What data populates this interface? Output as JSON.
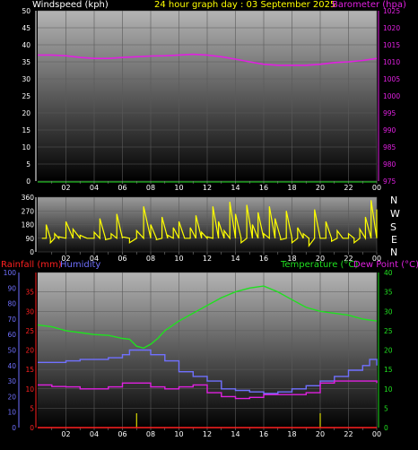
{
  "header": {
    "left": "Windspeed (kph)",
    "center": "24 hour graph day : 03 September 2025",
    "right": "Barometer (hpa)"
  },
  "lower_header": {
    "rainfall": "Rainfall (mm)",
    "humidity": "Humidity",
    "temperature": "Temperature (°C)",
    "dewpoint": "Dew Point (°C)"
  },
  "compass": [
    "N",
    "W",
    "S",
    "E",
    "N"
  ],
  "colors": {
    "wind_axis": "#ffffff",
    "baro": "#e020e0",
    "dir": "#ffff00",
    "temp": "#20e020",
    "dew": "#e020e0",
    "hum": "#7070ff",
    "rain": "#ff2020",
    "title": "#ffff00",
    "tick_text": "#ffff00"
  },
  "chart_data": [
    {
      "type": "line",
      "title": "24 hour graph day : 03 September 2025",
      "x_ticks": [
        "02",
        "04",
        "06",
        "08",
        "10",
        "12",
        "14",
        "16",
        "18",
        "20",
        "22",
        "00"
      ],
      "x_range": [
        0,
        24
      ],
      "y_left": {
        "label": "Windspeed (kph)",
        "ticks": [
          0,
          5,
          10,
          15,
          20,
          25,
          30,
          35,
          40,
          45,
          50
        ],
        "range": [
          0,
          50
        ]
      },
      "y_right": {
        "label": "Barometer (hpa)",
        "ticks": [
          975,
          980,
          985,
          990,
          995,
          1000,
          1005,
          1010,
          1015,
          1020,
          1025
        ],
        "range": [
          975,
          1025
        ]
      },
      "series": [
        {
          "name": "Barometer (hpa)",
          "axis": "right",
          "x": [
            0,
            1,
            2,
            3,
            4,
            5,
            6,
            7,
            8,
            9,
            10,
            11,
            12,
            13,
            14,
            15,
            16,
            17,
            18,
            19,
            20,
            21,
            22,
            23,
            24
          ],
          "y": [
            1012,
            1012,
            1011.8,
            1011.3,
            1011,
            1011,
            1011.3,
            1011.5,
            1011.7,
            1011.8,
            1012,
            1012.2,
            1012,
            1011.5,
            1010.8,
            1010,
            1009.3,
            1009,
            1009,
            1009,
            1009.3,
            1009.8,
            1010,
            1010.4,
            1011
          ]
        }
      ]
    },
    {
      "type": "line",
      "x_ticks": [
        "02",
        "04",
        "06",
        "08",
        "10",
        "12",
        "14",
        "16",
        "18",
        "20",
        "22",
        "00"
      ],
      "x_range": [
        0,
        24
      ],
      "y_left": {
        "ticks": [
          0,
          90,
          180,
          270,
          360
        ],
        "range": [
          0,
          360
        ]
      },
      "y_right_labels": [
        "N",
        "W",
        "S",
        "E",
        "N"
      ],
      "series": [
        {
          "name": "",
          "axis": "left",
          "x": [
            0.3,
            0.6,
            0.9,
            1.2,
            1.5,
            2,
            2.5,
            3,
            3.5,
            4,
            4.4,
            4.8,
            5.2,
            5.6,
            6,
            6.5,
            7,
            7.5,
            8,
            8.4,
            8.8,
            9.2,
            9.6,
            10,
            10.4,
            10.8,
            11.2,
            11.6,
            12,
            12.4,
            12.8,
            13.2,
            13.6,
            14,
            14.4,
            14.8,
            15.2,
            15.6,
            16,
            16.4,
            16.8,
            17.2,
            17.6,
            18,
            18.4,
            18.8,
            19.2,
            19.6,
            20,
            20.4,
            20.8,
            21.2,
            21.6,
            22,
            22.4,
            22.8,
            23.2,
            23.6,
            24
          ],
          "y": [
            90,
            180,
            60,
            120,
            100,
            200,
            150,
            110,
            90,
            130,
            220,
            80,
            120,
            250,
            100,
            60,
            140,
            300,
            180,
            80,
            230,
            110,
            160,
            200,
            90,
            160,
            240,
            130,
            100,
            300,
            200,
            140,
            330,
            250,
            60,
            310,
            180,
            260,
            120,
            300,
            220,
            80,
            270,
            60,
            160,
            120,
            40,
            280,
            90,
            200,
            70,
            140,
            90,
            120,
            60,
            150,
            230,
            340,
            280
          ]
        }
      ]
    },
    {
      "type": "line",
      "x_ticks": [
        "02",
        "04",
        "06",
        "08",
        "10",
        "12",
        "14",
        "16",
        "18",
        "20",
        "22",
        "00"
      ],
      "x_range": [
        0,
        24
      ],
      "y_left_outer": {
        "label": "Humidity",
        "ticks": [
          0,
          10,
          20,
          30,
          40,
          50,
          60,
          70,
          80,
          90,
          100
        ],
        "range": [
          0,
          100
        ]
      },
      "y_left_inner": {
        "label": "Rainfall (mm)",
        "ticks": [
          0,
          5,
          10,
          15,
          20,
          25,
          30,
          35
        ],
        "range": [
          0,
          40
        ]
      },
      "y_right": {
        "label": "Temperature (°C)",
        "ticks": [
          0,
          5,
          10,
          15,
          20,
          25,
          30,
          35,
          40
        ],
        "range": [
          0,
          40
        ]
      },
      "series": [
        {
          "name": "Temperature (°C)",
          "axis": "right",
          "x": [
            0,
            1,
            2,
            3,
            4,
            5,
            6,
            6.5,
            7,
            7.5,
            8,
            8.5,
            9,
            10,
            11,
            12,
            13,
            14,
            15,
            16,
            17,
            18,
            19,
            20,
            21,
            22,
            23,
            24
          ],
          "y": [
            26.5,
            26,
            25,
            24.5,
            24,
            23.8,
            23,
            22.8,
            21,
            20.5,
            21.5,
            23,
            25,
            27.5,
            29.5,
            31.5,
            33.5,
            35,
            36,
            36.5,
            35,
            33,
            31,
            30,
            29.5,
            29,
            28,
            27.5
          ]
        },
        {
          "name": "Dew Point (°C)",
          "axis": "right",
          "x": [
            0,
            1,
            2,
            3,
            4,
            5,
            6,
            7,
            8,
            9,
            10,
            11,
            12,
            13,
            14,
            15,
            16,
            17,
            18,
            19,
            20,
            21,
            22,
            23,
            24
          ],
          "y": [
            11,
            10.6,
            10.5,
            10,
            10,
            10.5,
            11.5,
            11.5,
            10.5,
            10,
            10.5,
            11,
            9,
            8,
            7.5,
            7.8,
            8.5,
            8.5,
            8.5,
            9,
            11.5,
            12,
            12,
            12,
            11.5
          ]
        },
        {
          "name": "Humidity",
          "axis": "left_outer",
          "x": [
            0,
            1,
            2,
            3,
            4,
            5,
            6,
            6.5,
            7,
            8,
            9,
            10,
            11,
            12,
            13,
            14,
            15,
            16,
            17,
            18,
            19,
            20,
            21,
            22,
            23,
            23.5,
            24
          ],
          "y": [
            42,
            42,
            43,
            44,
            44,
            45,
            47,
            50,
            50,
            47,
            43,
            36,
            33,
            30,
            25,
            24,
            23,
            22,
            23,
            25,
            27,
            30,
            33,
            37,
            40,
            44,
            40
          ]
        },
        {
          "name": "Rainfall (mm)",
          "axis": "left_inner",
          "x": [
            0,
            24
          ],
          "y": [
            0,
            0
          ]
        }
      ]
    }
  ]
}
